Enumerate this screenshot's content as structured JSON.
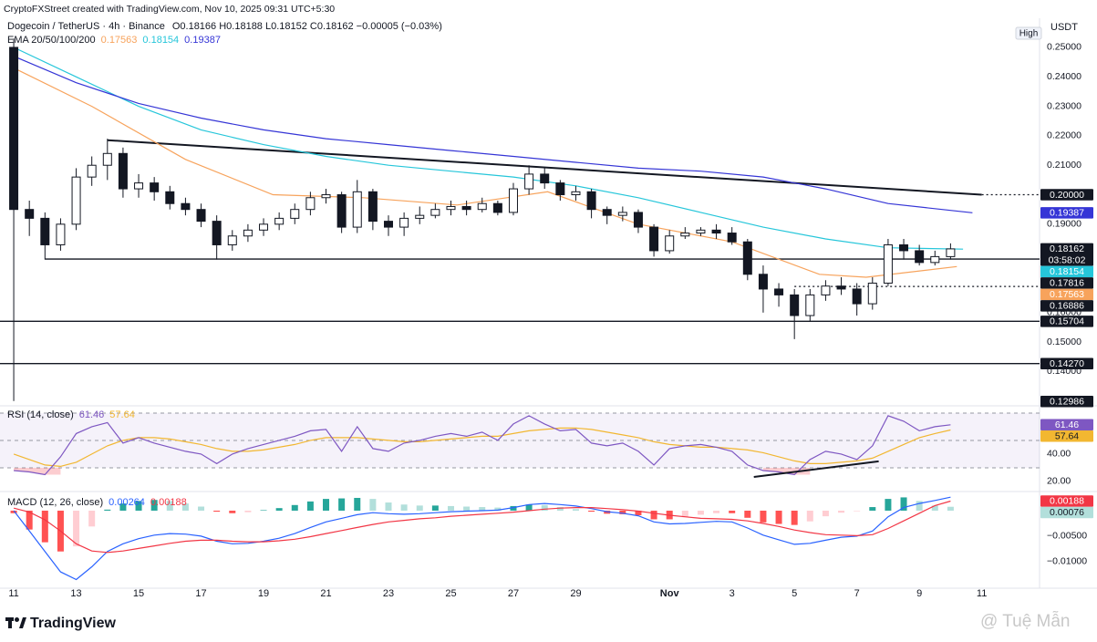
{
  "header": {
    "credit": "CryptoFXStreet created with TradingView.com, Nov 10, 2025 09:31 UTC+5:30",
    "symbol": "Dogecoin / TetherUS · 4h · Binance",
    "ohlc": "O0.18166 H0.18188 L0.18152 C0.18162 −0.00005 (−0.03%)",
    "ema_label": "EMA 20/50/100/200"
  },
  "axis_badges": {
    "currency": "USDT",
    "scale": "High"
  },
  "footer": {
    "logo": "TradingView",
    "watermark": "@ Tuệ Mẫn"
  },
  "chart_data": [
    {
      "type": "candlestick",
      "x": [
        0,
        0.5,
        1,
        1.5,
        2,
        2.5,
        3,
        3.5,
        4,
        4.5,
        5,
        5.5,
        6,
        6.5,
        7,
        7.5,
        8,
        8.5,
        9,
        9.5,
        10,
        10.5,
        11,
        11.5,
        12,
        12.5,
        13,
        13.5,
        14,
        14.5,
        15,
        15.5,
        16,
        16.5,
        17,
        17.5,
        18,
        18.5,
        19,
        19.5,
        20,
        20.5,
        21,
        21.5,
        22,
        22.5,
        23,
        23.5,
        24,
        24.5,
        25,
        25.5,
        26,
        26.5,
        27,
        27.5,
        28,
        28.5,
        29,
        29.5,
        30
      ],
      "open": [
        0.25,
        0.195,
        0.192,
        0.183,
        0.19,
        0.206,
        0.21,
        0.214,
        0.202,
        0.204,
        0.201,
        0.197,
        0.195,
        0.191,
        0.183,
        0.186,
        0.188,
        0.19,
        0.192,
        0.195,
        0.199,
        0.2,
        0.189,
        0.201,
        0.191,
        0.189,
        0.192,
        0.193,
        0.195,
        0.196,
        0.195,
        0.197,
        0.194,
        0.202,
        0.207,
        0.204,
        0.2,
        0.201,
        0.195,
        0.193,
        0.194,
        0.189,
        0.181,
        0.186,
        0.187,
        0.188,
        0.187,
        0.184,
        0.173,
        0.168,
        0.166,
        0.159,
        0.166,
        0.169,
        0.168,
        0.163,
        0.17,
        0.183,
        0.181,
        0.177,
        0.179
      ],
      "high": [
        0.253,
        0.198,
        0.194,
        0.192,
        0.209,
        0.213,
        0.219,
        0.216,
        0.207,
        0.206,
        0.203,
        0.199,
        0.197,
        0.193,
        0.188,
        0.19,
        0.192,
        0.194,
        0.197,
        0.201,
        0.202,
        0.201,
        0.205,
        0.202,
        0.193,
        0.194,
        0.196,
        0.197,
        0.198,
        0.198,
        0.199,
        0.198,
        0.204,
        0.21,
        0.209,
        0.205,
        0.203,
        0.202,
        0.196,
        0.196,
        0.195,
        0.19,
        0.188,
        0.189,
        0.189,
        0.19,
        0.189,
        0.185,
        0.176,
        0.17,
        0.168,
        0.168,
        0.171,
        0.172,
        0.17,
        0.172,
        0.185,
        0.185,
        0.183,
        0.181,
        0.1835
      ],
      "low": [
        0.13,
        0.186,
        0.178,
        0.181,
        0.188,
        0.203,
        0.205,
        0.199,
        0.199,
        0.198,
        0.195,
        0.193,
        0.189,
        0.178,
        0.181,
        0.184,
        0.186,
        0.188,
        0.19,
        0.193,
        0.197,
        0.187,
        0.187,
        0.188,
        0.186,
        0.186,
        0.19,
        0.192,
        0.193,
        0.193,
        0.194,
        0.193,
        0.193,
        0.2,
        0.202,
        0.198,
        0.198,
        0.192,
        0.19,
        0.191,
        0.187,
        0.179,
        0.18,
        0.185,
        0.186,
        0.185,
        0.183,
        0.171,
        0.16,
        0.162,
        0.151,
        0.157,
        0.164,
        0.166,
        0.159,
        0.161,
        0.169,
        0.178,
        0.176,
        0.176,
        0.178
      ],
      "close": [
        0.195,
        0.192,
        0.183,
        0.19,
        0.206,
        0.21,
        0.214,
        0.202,
        0.204,
        0.201,
        0.197,
        0.195,
        0.191,
        0.183,
        0.186,
        0.188,
        0.19,
        0.192,
        0.195,
        0.199,
        0.2,
        0.189,
        0.201,
        0.191,
        0.189,
        0.192,
        0.193,
        0.195,
        0.196,
        0.195,
        0.197,
        0.194,
        0.202,
        0.207,
        0.204,
        0.2,
        0.201,
        0.195,
        0.193,
        0.194,
        0.189,
        0.181,
        0.186,
        0.187,
        0.188,
        0.187,
        0.184,
        0.173,
        0.168,
        0.166,
        0.159,
        0.166,
        0.169,
        0.168,
        0.163,
        0.17,
        0.183,
        0.181,
        0.177,
        0.179,
        0.18162
      ],
      "up_color": "#ffffff",
      "down_color": "#131722",
      "series": [
        {
          "color": "#f7a35c",
          "x": [
            0,
            2.5,
            5.5,
            8.3,
            11.2,
            14.2,
            17.1,
            20,
            23,
            25.8,
            27.3,
            30.2
          ],
          "values": [
            0.243,
            0.23,
            0.212,
            0.2,
            0.199,
            0.1965,
            0.201,
            0.19,
            0.184,
            0.173,
            0.172,
            0.17563
          ]
        },
        {
          "color": "#26c6da",
          "x": [
            0,
            2,
            4,
            6,
            8,
            10,
            12,
            14,
            16,
            18,
            20,
            22,
            24,
            26,
            28,
            30.4
          ],
          "values": [
            0.25,
            0.24,
            0.23,
            0.222,
            0.217,
            0.213,
            0.21,
            0.208,
            0.206,
            0.203,
            0.199,
            0.194,
            0.189,
            0.185,
            0.182,
            0.18154
          ]
        },
        {
          "color": "#3535d6",
          "x": [
            0,
            2,
            4,
            6,
            8,
            10,
            12,
            14,
            16,
            18,
            20,
            22,
            24,
            26,
            28,
            30.7
          ],
          "values": [
            0.247,
            0.238,
            0.231,
            0.226,
            0.222,
            0.219,
            0.217,
            0.215,
            0.213,
            0.211,
            0.209,
            0.208,
            0.206,
            0.202,
            0.197,
            0.19387
          ]
        }
      ],
      "trendline": {
        "x": [
          3,
          31
        ],
        "values": [
          0.2185,
          0.2
        ]
      },
      "levels": [
        {
          "value": 0.2,
          "label": "0.20000",
          "from": 31,
          "style": "dotted"
        },
        {
          "value": 0.17816,
          "from": 1,
          "style": "solid"
        },
        {
          "value": 0.16886,
          "from": 25,
          "style": "dotted"
        },
        {
          "value": 0.15704,
          "from": -0.44,
          "style": "solid"
        },
        {
          "value": 0.1427,
          "label": "0.14270",
          "from": -0.44,
          "style": "solid"
        }
      ],
      "last_price": 0.18162,
      "countdown": "03:58:02",
      "low_marker": 0.12986,
      "xlim": [
        -0.44,
        32.85
      ],
      "xticks": [
        {
          "value": 0,
          "label": "11"
        },
        {
          "value": 2,
          "label": "13"
        },
        {
          "value": 4,
          "label": "15"
        },
        {
          "value": 6,
          "label": "17"
        },
        {
          "value": 8,
          "label": "19"
        },
        {
          "value": 10,
          "label": "21"
        },
        {
          "value": 12,
          "label": "23"
        },
        {
          "value": 14,
          "label": "25"
        },
        {
          "value": 16,
          "label": "27"
        },
        {
          "value": 18,
          "label": "29"
        },
        {
          "value": 21,
          "label": "Nov"
        },
        {
          "value": 23,
          "label": "3"
        },
        {
          "value": 25,
          "label": "5"
        },
        {
          "value": 27,
          "label": "7"
        },
        {
          "value": 29,
          "label": "9"
        },
        {
          "value": 31,
          "label": "11"
        }
      ],
      "ylim": [
        0.1293,
        0.2537
      ],
      "yticks": [
        {
          "value": 0.25,
          "label": "0.25000"
        },
        {
          "value": 0.24,
          "label": "0.24000"
        },
        {
          "value": 0.23,
          "label": "0.23000"
        },
        {
          "value": 0.22,
          "label": "0.22000"
        },
        {
          "value": 0.21,
          "label": "0.21000"
        },
        {
          "value": 0.19,
          "label": "0.19000"
        },
        {
          "value": 0.16,
          "label": "0.16000"
        },
        {
          "value": 0.15,
          "label": "0.15000"
        },
        {
          "value": 0.14,
          "label": "0.14000"
        }
      ]
    },
    {
      "type": "line",
      "title": "RSI (14, close)",
      "x": [
        0,
        0.5,
        1,
        1.5,
        2,
        2.5,
        3,
        3.5,
        4,
        4.5,
        5,
        5.5,
        6,
        6.5,
        7,
        7.5,
        8,
        8.5,
        9,
        9.5,
        10,
        10.5,
        11,
        11.5,
        12,
        12.5,
        13,
        13.5,
        14,
        14.5,
        15,
        15.5,
        16,
        16.5,
        17,
        17.5,
        18,
        18.5,
        19,
        19.5,
        20,
        20.5,
        21,
        21.5,
        22,
        22.5,
        23,
        23.5,
        24,
        24.5,
        25,
        25.5,
        26,
        26.5,
        27,
        27.5,
        28,
        28.5,
        29,
        29.5,
        30
      ],
      "series": [
        {
          "color": "#7e57c2",
          "values": [
            28,
            27,
            25,
            38,
            55,
            60,
            63,
            48,
            52,
            48,
            45,
            42,
            40,
            33,
            40,
            44,
            47,
            50,
            53,
            57,
            58,
            42,
            60,
            44,
            42,
            48,
            50,
            53,
            55,
            53,
            56,
            50,
            62,
            68,
            62,
            57,
            58,
            48,
            46,
            48,
            42,
            32,
            44,
            46,
            47,
            45,
            42,
            32,
            28,
            27,
            25,
            36,
            42,
            40,
            36,
            46,
            68,
            64,
            57,
            60,
            61.46
          ]
        },
        {
          "color": "#f2b731",
          "values": [
            40,
            36,
            32,
            31,
            34,
            40,
            46,
            50,
            52,
            52,
            51,
            49,
            47,
            44,
            42,
            42,
            43,
            45,
            47,
            50,
            52,
            52,
            52,
            51,
            50,
            49,
            49,
            50,
            51,
            52,
            53,
            53,
            55,
            57,
            58,
            59,
            59,
            58,
            56,
            54,
            52,
            49,
            47,
            46,
            45,
            45,
            44,
            43,
            41,
            38,
            35,
            33,
            33,
            34,
            35,
            37,
            42,
            47,
            52,
            55,
            57.64
          ]
        }
      ],
      "band": [
        30,
        70
      ],
      "midline": 50,
      "divergence": {
        "x": [
          23.7,
          27.7
        ],
        "values": [
          23.3,
          34.7
        ]
      },
      "ylim": [
        13.3,
        73.3
      ],
      "yticks": [
        {
          "value": 40,
          "label": "40.00"
        },
        {
          "value": 20,
          "label": "20.00"
        }
      ]
    },
    {
      "type": "macd",
      "title": "MACD (12, 26, close)",
      "x": [
        0,
        0.5,
        1,
        1.5,
        2,
        2.5,
        3,
        3.5,
        4,
        4.5,
        5,
        5.5,
        6,
        6.5,
        7,
        7.5,
        8,
        8.5,
        9,
        9.5,
        10,
        10.5,
        11,
        11.5,
        12,
        12.5,
        13,
        13.5,
        14,
        14.5,
        15,
        15.5,
        16,
        16.5,
        17,
        17.5,
        18,
        18.5,
        19,
        19.5,
        20,
        20.5,
        21,
        21.5,
        22,
        22.5,
        23,
        23.5,
        24,
        24.5,
        25,
        25.5,
        26,
        26.5,
        27,
        27.5,
        28,
        28.5,
        29,
        29.5,
        30
      ],
      "histogram": [
        -0.0005,
        -0.0037,
        -0.0062,
        -0.008,
        -0.007,
        -0.0031,
        0.0002,
        0.0014,
        0.0019,
        0.0021,
        0.0019,
        0.0014,
        0.0008,
        -0.0002,
        -0.0005,
        -0.0003,
        0.0001,
        0.0005,
        0.0011,
        0.0018,
        0.0023,
        0.0024,
        0.0025,
        0.0023,
        0.0016,
        0.0012,
        0.001,
        0.001,
        0.0009,
        0.0008,
        0.0007,
        0.0006,
        0.0009,
        0.0012,
        0.0011,
        0.0007,
        0.0003,
        -0.0002,
        -0.0006,
        -0.0007,
        -0.0009,
        -0.0017,
        -0.0017,
        -0.0013,
        -0.0008,
        -0.0005,
        -0.0005,
        -0.0014,
        -0.0023,
        -0.0026,
        -0.0028,
        -0.0021,
        -0.0011,
        -0.0004,
        -0.0001,
        0.0007,
        0.0023,
        0.0026,
        0.0019,
        0.001,
        0.00076
      ],
      "series": [
        {
          "color": "#2962ff",
          "values": [
            0,
            -0.004,
            -0.008,
            -0.012,
            -0.0135,
            -0.011,
            -0.008,
            -0.0065,
            -0.0055,
            -0.0048,
            -0.0045,
            -0.0046,
            -0.005,
            -0.006,
            -0.0065,
            -0.0064,
            -0.006,
            -0.0054,
            -0.0045,
            -0.0033,
            -0.0022,
            -0.0015,
            -0.0008,
            -0.0004,
            -0.0006,
            -0.0007,
            -0.0006,
            -0.0004,
            -0.0002,
            -0.0001,
            0,
            0.0001,
            0.0006,
            0.0012,
            0.0014,
            0.0012,
            0.0009,
            0.0004,
            -0.0002,
            -0.0005,
            -0.001,
            -0.0022,
            -0.0026,
            -0.0025,
            -0.0023,
            -0.0021,
            -0.0022,
            -0.0034,
            -0.0048,
            -0.0057,
            -0.0066,
            -0.0064,
            -0.0058,
            -0.0052,
            -0.005,
            -0.004,
            -0.0012,
            0.0006,
            0.0014,
            0.002,
            0.00264
          ]
        },
        {
          "color": "#f23645",
          "values": [
            0.0005,
            -0.0003,
            -0.0018,
            -0.004,
            -0.0065,
            -0.0079,
            -0.0082,
            -0.0079,
            -0.0074,
            -0.0069,
            -0.0064,
            -0.006,
            -0.0058,
            -0.0058,
            -0.006,
            -0.0061,
            -0.0061,
            -0.0059,
            -0.0056,
            -0.0051,
            -0.0045,
            -0.0039,
            -0.0033,
            -0.0027,
            -0.0022,
            -0.0019,
            -0.0016,
            -0.0014,
            -0.0011,
            -0.0009,
            -0.0007,
            -0.0005,
            -0.0003,
            0,
            0.0003,
            0.0005,
            0.0006,
            0.0006,
            0.0004,
            0.0002,
            -0.0001,
            -0.0005,
            -0.0009,
            -0.0012,
            -0.0015,
            -0.0016,
            -0.0017,
            -0.002,
            -0.0025,
            -0.0031,
            -0.0038,
            -0.0043,
            -0.0047,
            -0.0048,
            -0.0049,
            -0.0047,
            -0.0035,
            -0.002,
            -0.0005,
            0.001,
            0.00188
          ]
        }
      ],
      "ylim": [
        -0.0152,
        0.00357
      ],
      "yticks": [
        {
          "value": -0.005,
          "label": "−0.00500"
        },
        {
          "value": -0.01,
          "label": "−0.01000"
        }
      ]
    }
  ]
}
